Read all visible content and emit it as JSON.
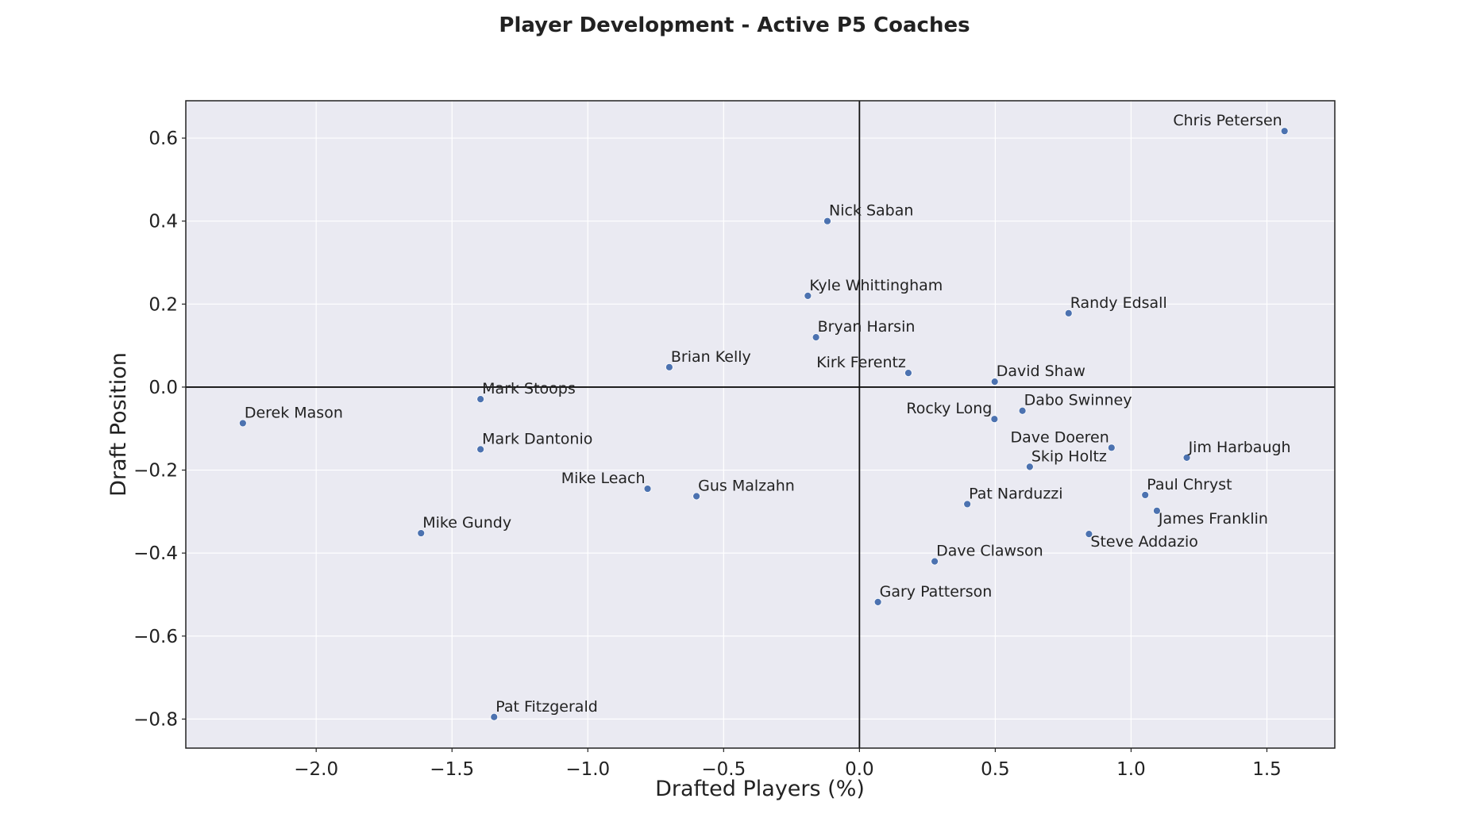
{
  "chart_data": {
    "type": "scatter",
    "title": "Player Development - Active P5 Coaches",
    "xlabel": "Drafted Players (%)",
    "ylabel": "Draft Position",
    "xlim": [
      -2.48,
      1.75
    ],
    "ylim": [
      -0.87,
      0.69
    ],
    "xticks": [
      -2.0,
      -1.5,
      -1.0,
      -0.5,
      0.0,
      0.5,
      1.0,
      1.5
    ],
    "yticks": [
      -0.8,
      -0.6,
      -0.4,
      -0.2,
      0.0,
      0.2,
      0.4,
      0.6
    ],
    "xtick_labels": [
      "−2.0",
      "−1.5",
      "−1.0",
      "−0.5",
      "0.0",
      "0.5",
      "1.0",
      "1.5"
    ],
    "ytick_labels": [
      "−0.8",
      "−0.6",
      "−0.4",
      "−0.2",
      "0.0",
      "0.2",
      "0.4",
      "0.6"
    ],
    "grid": true,
    "reference_lines": {
      "x": 0.0,
      "y": 0.0
    },
    "background_color": "#eaeaf2",
    "point_color": "#4c72b0",
    "points": [
      {
        "label": "Chris Petersen",
        "x": 1.565,
        "y": 0.617,
        "anchor": "end"
      },
      {
        "label": "Nick Saban",
        "x": -0.118,
        "y": 0.4,
        "anchor": "start"
      },
      {
        "label": "Kyle Whittingham",
        "x": -0.19,
        "y": 0.22,
        "anchor": "start"
      },
      {
        "label": "Randy Edsall",
        "x": 0.77,
        "y": 0.178,
        "anchor": "start"
      },
      {
        "label": "Bryan Harsin",
        "x": -0.16,
        "y": 0.12,
        "anchor": "start"
      },
      {
        "label": "Brian Kelly",
        "x": -0.7,
        "y": 0.048,
        "anchor": "start"
      },
      {
        "label": "Kirk Ferentz",
        "x": 0.18,
        "y": 0.034,
        "anchor": "end"
      },
      {
        "label": "David Shaw",
        "x": 0.498,
        "y": 0.013,
        "anchor": "start"
      },
      {
        "label": "Mark Stoops",
        "x": -1.395,
        "y": -0.029,
        "anchor": "start"
      },
      {
        "label": "Dabo Swinney",
        "x": 0.6,
        "y": -0.057,
        "anchor": "start"
      },
      {
        "label": "Rocky Long",
        "x": 0.497,
        "y": -0.077,
        "anchor": "end"
      },
      {
        "label": "Derek Mason",
        "x": -2.27,
        "y": -0.087,
        "anchor": "start"
      },
      {
        "label": "Dave Doeren",
        "x": 0.928,
        "y": -0.146,
        "anchor": "end"
      },
      {
        "label": "Mark Dantonio",
        "x": -1.395,
        "y": -0.15,
        "anchor": "start"
      },
      {
        "label": "Jim Harbaugh",
        "x": 1.205,
        "y": -0.17,
        "anchor": "start"
      },
      {
        "label": "Skip Holtz",
        "x": 0.627,
        "y": -0.192,
        "anchor": "start"
      },
      {
        "label": "Mike Leach",
        "x": -0.78,
        "y": -0.245,
        "anchor": "end"
      },
      {
        "label": "Paul Chryst",
        "x": 1.052,
        "y": -0.26,
        "anchor": "start"
      },
      {
        "label": "Gus Malzahn",
        "x": -0.6,
        "y": -0.263,
        "anchor": "start"
      },
      {
        "label": "Pat Narduzzi",
        "x": 0.397,
        "y": -0.282,
        "anchor": "start"
      },
      {
        "label": "James Franklin",
        "x": 1.095,
        "y": -0.298,
        "anchor": "start-below"
      },
      {
        "label": "Mike Gundy",
        "x": -1.614,
        "y": -0.352,
        "anchor": "start"
      },
      {
        "label": "Steve Addazio",
        "x": 0.845,
        "y": -0.354,
        "anchor": "start-below"
      },
      {
        "label": "Dave Clawson",
        "x": 0.277,
        "y": -0.42,
        "anchor": "start"
      },
      {
        "label": "Gary Patterson",
        "x": 0.068,
        "y": -0.518,
        "anchor": "start"
      },
      {
        "label": "Pat Fitzgerald",
        "x": -1.345,
        "y": -0.795,
        "anchor": "start"
      }
    ]
  }
}
